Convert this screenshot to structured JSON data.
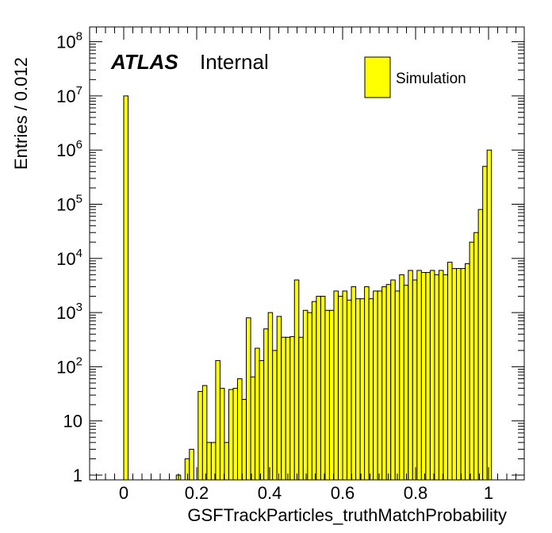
{
  "chart_data": {
    "type": "bar",
    "title": "",
    "xlabel": "GSFTrackParticles_truthMatchProbability",
    "ylabel": "Entries / 0.012",
    "xlim": [
      -0.1,
      1.1
    ],
    "ylim": [
      0.8,
      150000000
    ],
    "yscale": "log",
    "bin_width": 0.012,
    "fill_color": "#ffff00",
    "edge_color": "#000000",
    "x_ticks": [
      "0",
      "0.2",
      "0.4",
      "0.6",
      "0.8",
      "1"
    ],
    "y_ticks": [
      {
        "value": 1,
        "base": "1",
        "exp": ""
      },
      {
        "value": 10,
        "base": "10",
        "exp": ""
      },
      {
        "value": 100,
        "base": "10",
        "exp": "2"
      },
      {
        "value": 1000,
        "base": "10",
        "exp": "3"
      },
      {
        "value": 10000,
        "base": "10",
        "exp": "4"
      },
      {
        "value": 100000,
        "base": "10",
        "exp": "5"
      },
      {
        "value": 1000000,
        "base": "10",
        "exp": "6"
      },
      {
        "value": 10000000,
        "base": "10",
        "exp": "7"
      },
      {
        "value": 100000000,
        "base": "10",
        "exp": "8"
      }
    ],
    "legend": {
      "position": "top-right",
      "entries": [
        "Simulation"
      ]
    },
    "annotation": {
      "bold": "ATLAS",
      "text": "Internal",
      "position": "top-left"
    },
    "series": [
      {
        "name": "Simulation",
        "x": [
          0.0,
          0.144,
          0.156,
          0.168,
          0.18,
          0.192,
          0.204,
          0.216,
          0.228,
          0.24,
          0.252,
          0.264,
          0.276,
          0.288,
          0.3,
          0.312,
          0.324,
          0.336,
          0.348,
          0.36,
          0.372,
          0.384,
          0.396,
          0.408,
          0.42,
          0.432,
          0.444,
          0.456,
          0.468,
          0.48,
          0.492,
          0.504,
          0.516,
          0.528,
          0.54,
          0.552,
          0.564,
          0.576,
          0.588,
          0.6,
          0.612,
          0.624,
          0.636,
          0.648,
          0.66,
          0.672,
          0.684,
          0.696,
          0.708,
          0.72,
          0.732,
          0.744,
          0.756,
          0.768,
          0.78,
          0.792,
          0.804,
          0.816,
          0.828,
          0.84,
          0.852,
          0.864,
          0.876,
          0.888,
          0.9,
          0.912,
          0.924,
          0.936,
          0.948,
          0.96,
          0.972,
          0.984,
          0.996
        ],
        "y": [
          10000000,
          1,
          0,
          2,
          3,
          0,
          35,
          45,
          4,
          4,
          130,
          40,
          4,
          38,
          40,
          60,
          25,
          800,
          65,
          220,
          130,
          500,
          1000,
          200,
          850,
          350,
          350,
          360,
          4000,
          350,
          1100,
          1000,
          1600,
          2000,
          2000,
          1100,
          1100,
          2500,
          2000,
          2500,
          1700,
          3000,
          1800,
          1800,
          3000,
          1800,
          2500,
          2500,
          3000,
          3300,
          4000,
          2500,
          5000,
          3200,
          6000,
          4000,
          6000,
          5500,
          5500,
          6000,
          5000,
          6000,
          5000,
          8500,
          6500,
          6500,
          6500,
          8000,
          20000,
          30000,
          80000,
          500000,
          1000000
        ]
      }
    ]
  }
}
